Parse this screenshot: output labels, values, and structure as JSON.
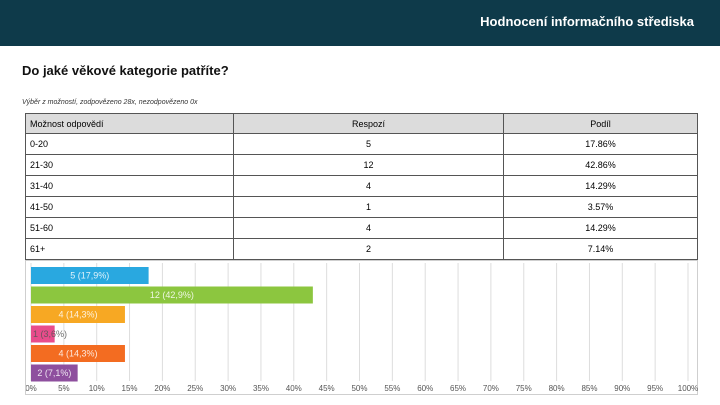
{
  "header": {
    "title": "Hodnocení informačního střediska"
  },
  "question": "Do jaké věkové kategorie patříte?",
  "meta": "Výběr z možností, zodpovězeno 28x, nezodpovězeno 0x",
  "table": {
    "headers": [
      "Možnost odpovědí",
      "Respozí",
      "Podíl"
    ],
    "rows": [
      [
        "0-20",
        "5",
        "17.86%"
      ],
      [
        "21-30",
        "12",
        "42.86%"
      ],
      [
        "31-40",
        "4",
        "14.29%"
      ],
      [
        "41-50",
        "1",
        "3.57%"
      ],
      [
        "51-60",
        "4",
        "14.29%"
      ],
      [
        "61+",
        "2",
        "7.14%"
      ]
    ]
  },
  "chart_data": {
    "type": "bar",
    "orientation": "horizontal",
    "categories": [
      "0-20",
      "21-30",
      "31-40",
      "41-50",
      "51-60",
      "61+"
    ],
    "values": [
      17.9,
      42.9,
      14.3,
      3.6,
      14.3,
      7.1
    ],
    "data_labels": [
      "5 (17,9%)",
      "12 (42,9%)",
      "4 (14,3%)",
      "1 (3,6%)",
      "4 (14,3%)",
      "2 (7,1%)"
    ],
    "colors": [
      "#29a8e0",
      "#8cc63f",
      "#f7a823",
      "#e84c8b",
      "#f36c21",
      "#8e4f9e"
    ],
    "xlim": [
      0,
      100
    ],
    "x_ticks": [
      "0%",
      "5%",
      "10%",
      "15%",
      "20%",
      "25%",
      "30%",
      "35%",
      "40%",
      "45%",
      "50%",
      "55%",
      "60%",
      "65%",
      "70%",
      "75%",
      "80%",
      "85%",
      "90%",
      "95%",
      "100%"
    ],
    "grid": true
  }
}
